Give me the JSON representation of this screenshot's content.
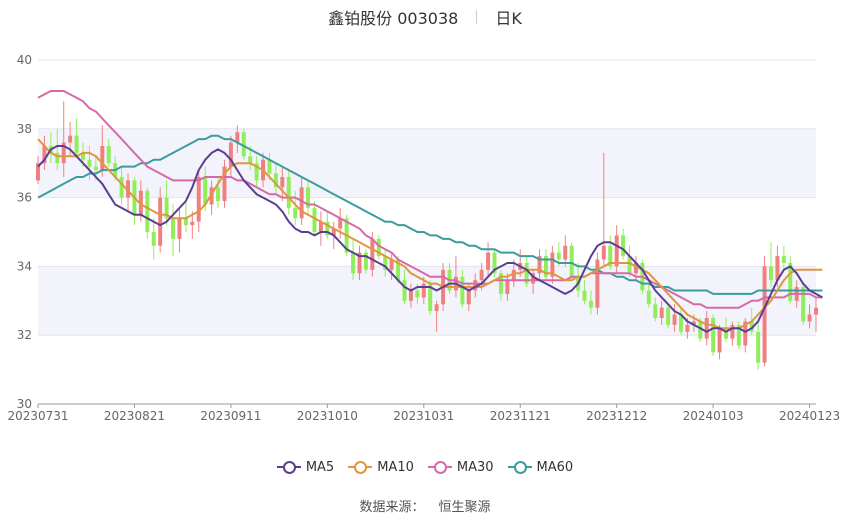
{
  "header": {
    "stock_title": "鑫铂股份 003038",
    "period": "日K"
  },
  "source": {
    "label": "数据来源：",
    "value": "恒生聚源"
  },
  "colors": {
    "up": "#f08080",
    "down": "#90ee5a",
    "ma5": "#5b3e94",
    "ma10": "#e0953e",
    "ma30": "#d66aa8",
    "ma60": "#3b9c9c"
  },
  "chart_data": {
    "type": "candlestick",
    "x_ticks": [
      "20230731",
      "20230821",
      "20230911",
      "20231010",
      "20231031",
      "20231121",
      "20231212",
      "20240103",
      "20240123"
    ],
    "x_tick_index": [
      0,
      15,
      30,
      45,
      60,
      75,
      90,
      105,
      120
    ],
    "ylim": [
      30,
      40
    ],
    "y_ticks": [
      30,
      32,
      34,
      36,
      38,
      40
    ],
    "legend": [
      "MA5",
      "MA10",
      "MA30",
      "MA60"
    ],
    "ohlc": [
      [
        36.5,
        37.2,
        36.4,
        37.0
      ],
      [
        37.0,
        37.8,
        36.8,
        37.5
      ],
      [
        37.5,
        37.9,
        37.0,
        37.3
      ],
      [
        37.3,
        38.0,
        36.8,
        37.0
      ],
      [
        37.0,
        38.8,
        36.6,
        37.6
      ],
      [
        37.6,
        38.2,
        37.2,
        37.8
      ],
      [
        37.8,
        38.3,
        37.2,
        37.3
      ],
      [
        37.3,
        37.6,
        36.9,
        37.1
      ],
      [
        37.1,
        37.5,
        36.5,
        36.9
      ],
      [
        36.9,
        37.2,
        36.5,
        36.8
      ],
      [
        36.8,
        38.1,
        36.6,
        37.5
      ],
      [
        37.5,
        37.7,
        36.9,
        37.0
      ],
      [
        37.0,
        37.2,
        36.5,
        36.6
      ],
      [
        36.6,
        36.9,
        35.8,
        36.0
      ],
      [
        36.0,
        36.7,
        35.6,
        36.5
      ],
      [
        36.5,
        36.6,
        35.2,
        35.5
      ],
      [
        35.5,
        36.5,
        35.3,
        36.2
      ],
      [
        36.2,
        36.3,
        34.8,
        35.0
      ],
      [
        35.0,
        35.4,
        34.2,
        34.6
      ],
      [
        34.6,
        36.3,
        34.4,
        36.0
      ],
      [
        36.0,
        36.5,
        35.2,
        35.4
      ],
      [
        35.4,
        35.8,
        34.3,
        34.8
      ],
      [
        34.8,
        35.7,
        34.4,
        35.4
      ],
      [
        35.4,
        35.9,
        35.0,
        35.2
      ],
      [
        35.2,
        35.6,
        34.8,
        35.3
      ],
      [
        35.3,
        36.8,
        35.0,
        36.6
      ],
      [
        36.6,
        36.9,
        35.6,
        35.8
      ],
      [
        35.8,
        36.5,
        35.5,
        36.3
      ],
      [
        36.3,
        36.6,
        35.7,
        35.9
      ],
      [
        35.9,
        37.1,
        35.7,
        36.9
      ],
      [
        36.9,
        37.8,
        36.6,
        37.6
      ],
      [
        37.6,
        38.1,
        37.3,
        37.9
      ],
      [
        37.9,
        38.0,
        37.1,
        37.2
      ],
      [
        37.2,
        37.5,
        36.8,
        37.0
      ],
      [
        37.0,
        37.2,
        36.3,
        36.5
      ],
      [
        36.5,
        37.3,
        36.3,
        37.1
      ],
      [
        37.1,
        37.3,
        36.5,
        36.7
      ],
      [
        36.7,
        37.0,
        36.1,
        36.3
      ],
      [
        36.3,
        36.9,
        35.9,
        36.6
      ],
      [
        36.6,
        36.8,
        35.5,
        35.7
      ],
      [
        35.7,
        36.2,
        35.2,
        35.4
      ],
      [
        35.4,
        36.6,
        35.2,
        36.3
      ],
      [
        36.3,
        36.5,
        35.5,
        35.7
      ],
      [
        35.7,
        35.9,
        34.9,
        35.0
      ],
      [
        35.0,
        35.6,
        34.6,
        35.3
      ],
      [
        35.3,
        35.6,
        34.8,
        34.9
      ],
      [
        34.9,
        35.3,
        34.5,
        35.1
      ],
      [
        35.1,
        35.7,
        34.8,
        35.4
      ],
      [
        35.4,
        35.5,
        34.3,
        34.4
      ],
      [
        34.4,
        34.8,
        33.6,
        33.8
      ],
      [
        33.8,
        34.6,
        33.6,
        34.4
      ],
      [
        34.4,
        34.5,
        33.8,
        33.9
      ],
      [
        33.9,
        35.0,
        33.7,
        34.8
      ],
      [
        34.8,
        34.9,
        34.2,
        34.3
      ],
      [
        34.3,
        34.5,
        33.7,
        33.9
      ],
      [
        33.9,
        34.4,
        33.6,
        34.2
      ],
      [
        34.2,
        34.3,
        33.5,
        33.6
      ],
      [
        33.6,
        33.9,
        32.9,
        33.0
      ],
      [
        33.0,
        33.5,
        32.8,
        33.3
      ],
      [
        33.3,
        33.5,
        32.9,
        33.1
      ],
      [
        33.1,
        33.7,
        32.9,
        33.5
      ],
      [
        33.5,
        33.6,
        32.6,
        32.7
      ],
      [
        32.7,
        33.0,
        32.1,
        32.9
      ],
      [
        32.9,
        34.1,
        32.7,
        33.9
      ],
      [
        33.9,
        34.1,
        33.2,
        33.3
      ],
      [
        33.3,
        34.3,
        33.1,
        33.7
      ],
      [
        33.7,
        33.9,
        32.8,
        32.9
      ],
      [
        32.9,
        33.5,
        32.7,
        33.3
      ],
      [
        33.3,
        33.8,
        33.1,
        33.6
      ],
      [
        33.6,
        34.1,
        33.3,
        33.9
      ],
      [
        33.9,
        34.7,
        33.7,
        34.4
      ],
      [
        34.4,
        34.5,
        33.7,
        33.8
      ],
      [
        33.8,
        33.9,
        33.0,
        33.2
      ],
      [
        33.2,
        33.8,
        33.0,
        33.6
      ],
      [
        33.6,
        34.2,
        33.4,
        33.9
      ],
      [
        33.9,
        34.5,
        33.7,
        34.1
      ],
      [
        34.1,
        34.3,
        33.4,
        33.5
      ],
      [
        33.5,
        33.9,
        33.2,
        33.8
      ],
      [
        33.8,
        34.5,
        33.6,
        34.3
      ],
      [
        34.3,
        34.5,
        33.6,
        33.7
      ],
      [
        33.7,
        34.6,
        33.5,
        34.4
      ],
      [
        34.4,
        34.7,
        34.0,
        34.2
      ],
      [
        34.2,
        34.9,
        34.0,
        34.6
      ],
      [
        34.6,
        34.7,
        33.6,
        33.7
      ],
      [
        33.7,
        34.1,
        33.1,
        33.3
      ],
      [
        33.3,
        33.6,
        32.9,
        33.0
      ],
      [
        33.0,
        33.3,
        32.6,
        32.8
      ],
      [
        32.8,
        34.4,
        32.6,
        34.2
      ],
      [
        34.2,
        37.3,
        34.0,
        34.6
      ],
      [
        34.6,
        34.9,
        33.9,
        34.0
      ],
      [
        34.0,
        35.2,
        33.8,
        34.9
      ],
      [
        34.9,
        35.1,
        34.2,
        34.3
      ],
      [
        34.3,
        34.6,
        33.7,
        33.8
      ],
      [
        33.8,
        34.3,
        33.6,
        34.1
      ],
      [
        34.1,
        34.2,
        33.2,
        33.3
      ],
      [
        33.3,
        33.6,
        32.8,
        32.9
      ],
      [
        32.9,
        33.1,
        32.4,
        32.5
      ],
      [
        32.5,
        33.0,
        32.3,
        32.8
      ],
      [
        32.8,
        32.9,
        32.2,
        32.3
      ],
      [
        32.3,
        32.9,
        32.1,
        32.6
      ],
      [
        32.6,
        32.8,
        32.0,
        32.1
      ],
      [
        32.1,
        32.5,
        31.9,
        32.3
      ],
      [
        32.3,
        32.6,
        32.1,
        32.4
      ],
      [
        32.4,
        32.5,
        31.8,
        31.9
      ],
      [
        31.9,
        32.7,
        31.7,
        32.5
      ],
      [
        32.5,
        32.6,
        31.4,
        31.5
      ],
      [
        31.5,
        32.3,
        31.3,
        32.2
      ],
      [
        32.2,
        32.5,
        31.8,
        31.9
      ],
      [
        31.9,
        32.4,
        31.7,
        32.3
      ],
      [
        32.3,
        32.4,
        31.6,
        31.7
      ],
      [
        31.7,
        32.5,
        31.5,
        32.4
      ],
      [
        32.4,
        32.8,
        32.0,
        32.1
      ],
      [
        32.1,
        32.4,
        31.0,
        31.2
      ],
      [
        31.2,
        34.3,
        31.1,
        34.0
      ],
      [
        34.0,
        34.7,
        33.4,
        33.6
      ],
      [
        33.6,
        34.6,
        33.4,
        34.3
      ],
      [
        34.3,
        34.6,
        33.9,
        34.1
      ],
      [
        34.1,
        34.3,
        32.9,
        33.0
      ],
      [
        33.0,
        33.6,
        32.8,
        33.4
      ],
      [
        33.4,
        33.5,
        32.3,
        32.4
      ],
      [
        32.4,
        32.9,
        32.2,
        32.6
      ],
      [
        32.6,
        33.1,
        32.1,
        32.8
      ]
    ],
    "ma5": [
      36.9,
      37.1,
      37.4,
      37.5,
      37.5,
      37.4,
      37.2,
      37.0,
      36.8,
      36.6,
      36.4,
      36.1,
      35.8,
      35.7,
      35.6,
      35.5,
      35.5,
      35.4,
      35.3,
      35.2,
      35.3,
      35.5,
      35.7,
      35.9,
      36.3,
      36.8,
      37.1,
      37.3,
      37.4,
      37.3,
      37.1,
      36.8,
      36.5,
      36.3,
      36.1,
      36.0,
      35.9,
      35.8,
      35.6,
      35.3,
      35.1,
      35.0,
      35.0,
      34.9,
      35.0,
      35.0,
      34.9,
      34.7,
      34.5,
      34.4,
      34.3,
      34.3,
      34.2,
      34.1,
      34.0,
      33.8,
      33.6,
      33.4,
      33.3,
      33.4,
      33.4,
      33.4,
      33.3,
      33.4,
      33.5,
      33.5,
      33.4,
      33.3,
      33.4,
      33.5,
      33.7,
      33.9,
      34.0,
      34.1,
      34.1,
      34.0,
      33.9,
      33.7,
      33.6,
      33.5,
      33.4,
      33.3,
      33.2,
      33.3,
      33.5,
      33.9,
      34.3,
      34.6,
      34.7,
      34.7,
      34.6,
      34.5,
      34.3,
      34.1,
      33.9,
      33.6,
      33.3,
      33.1,
      32.9,
      32.7,
      32.6,
      32.4,
      32.3,
      32.2,
      32.1,
      32.2,
      32.2,
      32.1,
      32.2,
      32.2,
      32.1,
      32.2,
      32.4,
      32.8,
      33.2,
      33.6,
      33.9,
      34.0,
      33.8,
      33.5,
      33.3,
      33.2,
      33.1
    ],
    "ma10": [
      37.7,
      37.5,
      37.3,
      37.2,
      37.2,
      37.2,
      37.2,
      37.3,
      37.3,
      37.2,
      37.0,
      36.8,
      36.6,
      36.4,
      36.2,
      36.0,
      35.8,
      35.7,
      35.6,
      35.5,
      35.5,
      35.4,
      35.4,
      35.4,
      35.5,
      35.6,
      35.8,
      36.1,
      36.4,
      36.7,
      36.9,
      37.0,
      37.0,
      37.0,
      36.9,
      36.8,
      36.6,
      36.4,
      36.2,
      36.0,
      35.8,
      35.6,
      35.5,
      35.4,
      35.3,
      35.2,
      35.1,
      35.0,
      34.9,
      34.8,
      34.7,
      34.6,
      34.5,
      34.4,
      34.3,
      34.2,
      34.1,
      34.0,
      33.8,
      33.7,
      33.6,
      33.5,
      33.5,
      33.4,
      33.4,
      33.4,
      33.4,
      33.4,
      33.4,
      33.4,
      33.5,
      33.6,
      33.7,
      33.7,
      33.8,
      33.8,
      33.9,
      33.9,
      33.9,
      33.8,
      33.8,
      33.7,
      33.6,
      33.6,
      33.7,
      33.7,
      33.8,
      33.9,
      34.0,
      34.1,
      34.1,
      34.1,
      34.1,
      34.0,
      33.9,
      33.8,
      33.6,
      33.4,
      33.2,
      33.0,
      32.8,
      32.6,
      32.5,
      32.4,
      32.3,
      32.3,
      32.2,
      32.2,
      32.2,
      32.2,
      32.3,
      32.4,
      32.6,
      32.8,
      33.0,
      33.3,
      33.6,
      33.8,
      33.9,
      33.9,
      33.9,
      33.9,
      33.9
    ],
    "ma30": [
      38.9,
      39.0,
      39.1,
      39.1,
      39.1,
      39.0,
      38.9,
      38.8,
      38.6,
      38.5,
      38.3,
      38.1,
      37.9,
      37.7,
      37.5,
      37.3,
      37.1,
      36.9,
      36.8,
      36.7,
      36.6,
      36.5,
      36.5,
      36.5,
      36.5,
      36.5,
      36.6,
      36.6,
      36.6,
      36.6,
      36.6,
      36.5,
      36.5,
      36.4,
      36.3,
      36.2,
      36.1,
      36.1,
      36.0,
      36.0,
      36.0,
      35.9,
      35.8,
      35.8,
      35.7,
      35.6,
      35.5,
      35.4,
      35.3,
      35.2,
      35.1,
      34.9,
      34.8,
      34.6,
      34.5,
      34.4,
      34.2,
      34.1,
      34.0,
      33.9,
      33.8,
      33.7,
      33.7,
      33.7,
      33.6,
      33.6,
      33.5,
      33.5,
      33.5,
      33.5,
      33.5,
      33.6,
      33.6,
      33.6,
      33.6,
      33.6,
      33.6,
      33.6,
      33.6,
      33.6,
      33.6,
      33.6,
      33.6,
      33.7,
      33.7,
      33.7,
      33.8,
      33.8,
      33.8,
      33.8,
      33.8,
      33.8,
      33.8,
      33.7,
      33.7,
      33.6,
      33.5,
      33.4,
      33.3,
      33.2,
      33.1,
      33.0,
      32.9,
      32.9,
      32.8,
      32.8,
      32.8,
      32.8,
      32.8,
      32.8,
      32.9,
      33.0,
      33.0,
      33.1,
      33.1,
      33.1,
      33.1,
      33.2,
      33.2,
      33.2,
      33.2,
      33.1,
      33.1
    ],
    "ma60": [
      36.0,
      36.1,
      36.2,
      36.3,
      36.4,
      36.5,
      36.6,
      36.6,
      36.7,
      36.7,
      36.8,
      36.8,
      36.8,
      36.9,
      36.9,
      36.9,
      37.0,
      37.0,
      37.1,
      37.1,
      37.2,
      37.3,
      37.4,
      37.5,
      37.6,
      37.7,
      37.7,
      37.8,
      37.8,
      37.7,
      37.7,
      37.6,
      37.5,
      37.4,
      37.3,
      37.2,
      37.1,
      37.0,
      36.9,
      36.8,
      36.7,
      36.6,
      36.5,
      36.4,
      36.3,
      36.2,
      36.1,
      36.0,
      35.9,
      35.8,
      35.7,
      35.6,
      35.5,
      35.4,
      35.3,
      35.3,
      35.2,
      35.2,
      35.1,
      35.0,
      35.0,
      34.9,
      34.9,
      34.8,
      34.8,
      34.7,
      34.7,
      34.6,
      34.6,
      34.5,
      34.5,
      34.5,
      34.4,
      34.4,
      34.4,
      34.3,
      34.3,
      34.3,
      34.2,
      34.2,
      34.2,
      34.1,
      34.1,
      34.1,
      34.0,
      34.0,
      33.9,
      33.9,
      33.8,
      33.8,
      33.7,
      33.7,
      33.6,
      33.6,
      33.5,
      33.5,
      33.4,
      33.4,
      33.4,
      33.3,
      33.3,
      33.3,
      33.3,
      33.3,
      33.3,
      33.2,
      33.2,
      33.2,
      33.2,
      33.2,
      33.2,
      33.2,
      33.3,
      33.3,
      33.3,
      33.3,
      33.3,
      33.3,
      33.3,
      33.3,
      33.3,
      33.3,
      33.3
    ]
  }
}
